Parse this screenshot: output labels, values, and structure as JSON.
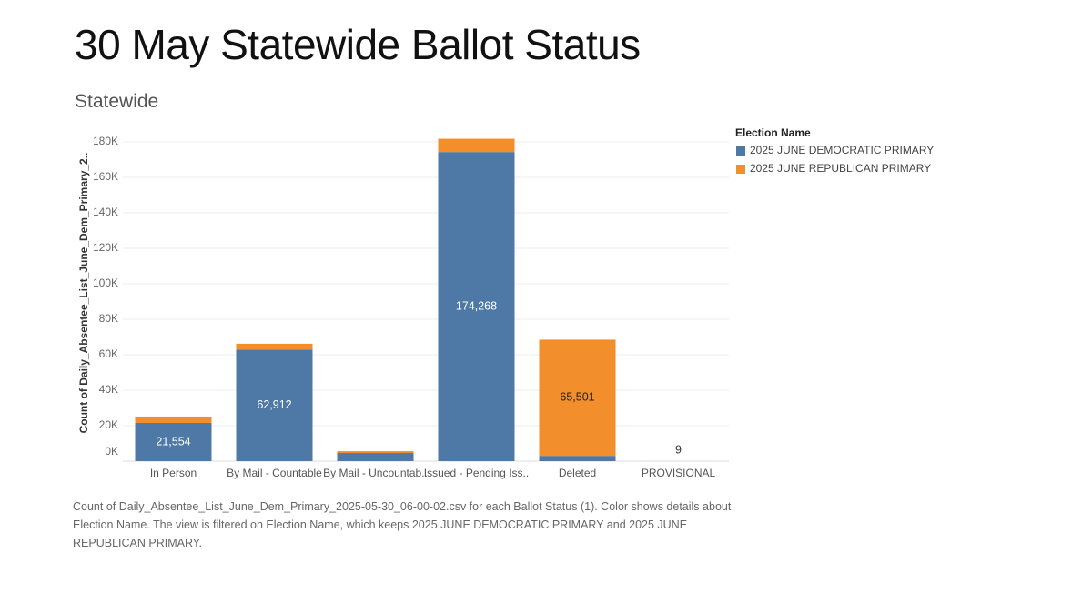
{
  "chart_data": {
    "type": "stacked-bar",
    "title": "30 May Statewide Ballot Status",
    "subtitle": "Statewide",
    "y_label": "Count of Daily_Absentee_List_June_Dem_Primary_2..",
    "caption": "Count of Daily_Absentee_List_June_Dem_Primary_2025-05-30_06-00-02.csv for each Ballot Status (1).  Color shows details about Election Name. The view is filtered on Election Name, which keeps 2025 JUNE DEMOCRATIC PRIMARY and 2025 JUNE REPUBLICAN PRIMARY.",
    "legend_title": "Election Name",
    "legend_position": "right",
    "grid": true,
    "categories": [
      "In Person",
      "By Mail - Countable",
      "By Mail - Uncountab..",
      "Issued - Pending Iss..",
      "Deleted",
      "PROVISIONAL"
    ],
    "series": [
      {
        "name": "2025 JUNE DEMOCRATIC PRIMARY",
        "color": "#4e79a7",
        "values": [
          21554,
          62912,
          4600,
          174268,
          3000,
          9
        ],
        "value_labels": [
          "21,554",
          "62,912",
          null,
          "174,268",
          null,
          "9"
        ]
      },
      {
        "name": "2025 JUNE REPUBLICAN PRIMARY",
        "color": "#f28e2b",
        "values": [
          3600,
          3300,
          1000,
          7500,
          65501,
          null
        ],
        "value_labels": [
          null,
          null,
          null,
          null,
          "65,501",
          null
        ]
      }
    ],
    "ylim": [
      0,
      180000
    ],
    "yticks": [
      {
        "value": 0,
        "label": "0K"
      },
      {
        "value": 20000,
        "label": "20K"
      },
      {
        "value": 40000,
        "label": "40K"
      },
      {
        "value": 60000,
        "label": "60K"
      },
      {
        "value": 80000,
        "label": "80K"
      },
      {
        "value": 100000,
        "label": "100K"
      },
      {
        "value": 120000,
        "label": "120K"
      },
      {
        "value": 140000,
        "label": "140K"
      },
      {
        "value": 160000,
        "label": "160K"
      },
      {
        "value": 180000,
        "label": "180K"
      }
    ]
  }
}
